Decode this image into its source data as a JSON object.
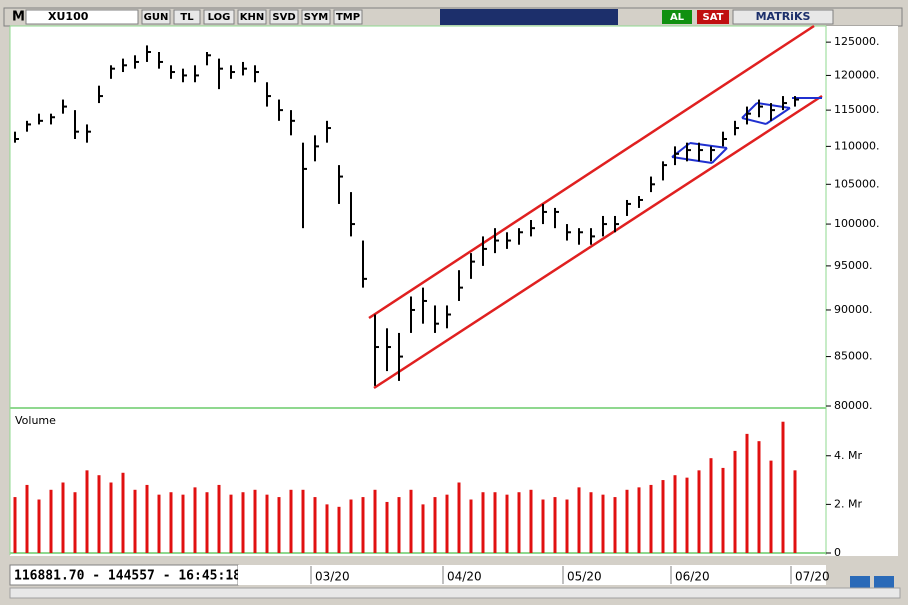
{
  "toolbar": {
    "logo": "M",
    "symbol": "XU100",
    "buttons": [
      "GUN",
      "TL",
      "LOG",
      "KHN",
      "SVD",
      "SYM",
      "TMP"
    ],
    "buy": "AL",
    "sell": "SAT",
    "brand": "MATRiKS"
  },
  "status": "116881.70 - 144557 - 16:45:18",
  "chart_data": [
    {
      "type": "hlc",
      "log_scale": true,
      "categories": [
        null,
        null,
        null,
        null,
        null,
        null,
        null,
        null,
        null,
        null,
        null,
        null,
        null,
        null,
        null,
        null,
        null,
        null,
        null,
        null,
        null,
        null,
        null,
        null,
        null,
        "03/20",
        null,
        null,
        null,
        null,
        null,
        null,
        null,
        null,
        null,
        null,
        "04/20",
        null,
        null,
        null,
        null,
        null,
        null,
        null,
        null,
        null,
        "05/20",
        null,
        null,
        null,
        null,
        null,
        null,
        null,
        null,
        "06/20",
        null,
        null,
        null,
        null,
        null,
        null,
        null,
        null,
        null,
        "07/20"
      ],
      "high": [
        112000,
        113500,
        114500,
        114500,
        116500,
        115000,
        113000,
        118500,
        121500,
        122500,
        123000,
        124500,
        123500,
        121500,
        121000,
        121500,
        123500,
        122500,
        121500,
        122000,
        121500,
        119000,
        116500,
        115000,
        110500,
        111500,
        113500,
        107500,
        104000,
        98000,
        89500,
        88000,
        87500,
        91500,
        92500,
        90500,
        90500,
        94500,
        96500,
        98500,
        99500,
        99000,
        99500,
        100500,
        102500,
        102000,
        100000,
        99500,
        99500,
        101000,
        101000,
        103000,
        103500,
        106000,
        108000,
        110000,
        110500,
        110500,
        110000,
        112000,
        113500,
        115500,
        116500,
        116000,
        117000,
        117000
      ],
      "low": [
        110500,
        112000,
        113000,
        113000,
        114500,
        111000,
        110500,
        116000,
        119500,
        120500,
        121000,
        122000,
        121000,
        119500,
        119000,
        119000,
        121500,
        118000,
        119500,
        120000,
        119000,
        115500,
        113500,
        111500,
        99500,
        108000,
        110500,
        102500,
        98500,
        92500,
        82000,
        83500,
        82500,
        87500,
        88500,
        87500,
        88000,
        91000,
        93500,
        95000,
        96500,
        97000,
        97500,
        98500,
        100000,
        99500,
        98000,
        97500,
        97500,
        98500,
        99000,
        101000,
        102000,
        104000,
        105500,
        107500,
        108000,
        108000,
        108000,
        110000,
        111500,
        113000,
        114000,
        113500,
        115000,
        115500
      ],
      "close": [
        111000,
        113000,
        113500,
        114000,
        115500,
        112000,
        112000,
        117000,
        121000,
        121500,
        122000,
        123500,
        122000,
        120500,
        120000,
        120000,
        123000,
        121000,
        120500,
        121000,
        120500,
        117000,
        115000,
        113500,
        107000,
        110000,
        112500,
        106000,
        100000,
        93500,
        86000,
        86000,
        85000,
        90000,
        91000,
        88500,
        89500,
        92500,
        95500,
        97000,
        98000,
        98000,
        99000,
        99500,
        101500,
        101500,
        99000,
        99000,
        98500,
        100000,
        100000,
        102500,
        103000,
        105000,
        107500,
        109000,
        109500,
        109500,
        109500,
        111000,
        112500,
        114500,
        115500,
        115000,
        116000,
        116500
      ],
      "color": "#000000",
      "ylim": [
        80000,
        127500
      ],
      "yticks": [
        {
          "value": 80000,
          "label": "80000."
        },
        {
          "value": 85000,
          "label": "85000."
        },
        {
          "value": 90000,
          "label": "90000."
        },
        {
          "value": 95000,
          "label": "95000."
        },
        {
          "value": 100000,
          "label": "100000."
        },
        {
          "value": 105000,
          "label": "105000."
        },
        {
          "value": 110000,
          "label": "110000."
        },
        {
          "value": 115000,
          "label": "115000."
        },
        {
          "value": 120000,
          "label": "120000."
        },
        {
          "value": 125000,
          "label": "125000."
        }
      ]
    },
    {
      "type": "bar",
      "title": "Volume",
      "color": "#e01010",
      "values": [
        2.3,
        2.8,
        2.2,
        2.6,
        2.9,
        2.5,
        3.4,
        3.2,
        2.9,
        3.3,
        2.6,
        2.8,
        2.4,
        2.5,
        2.4,
        2.7,
        2.5,
        2.8,
        2.4,
        2.5,
        2.6,
        2.4,
        2.3,
        2.6,
        2.6,
        2.3,
        2.0,
        1.9,
        2.2,
        2.3,
        2.6,
        2.1,
        2.3,
        2.6,
        2.0,
        2.3,
        2.4,
        2.9,
        2.2,
        2.5,
        2.5,
        2.4,
        2.5,
        2.6,
        2.2,
        2.3,
        2.2,
        2.7,
        2.5,
        2.4,
        2.3,
        2.6,
        2.7,
        2.8,
        3.0,
        3.2,
        3.1,
        3.4,
        3.9,
        3.5,
        4.2,
        4.9,
        4.6,
        3.8,
        5.4,
        3.4
      ],
      "ylim": [
        0,
        5.8
      ],
      "yticks": [
        0,
        {
          "value": 2,
          "label": "2. Mr"
        },
        {
          "value": 4,
          "label": "4. Mr"
        }
      ]
    }
  ]
}
